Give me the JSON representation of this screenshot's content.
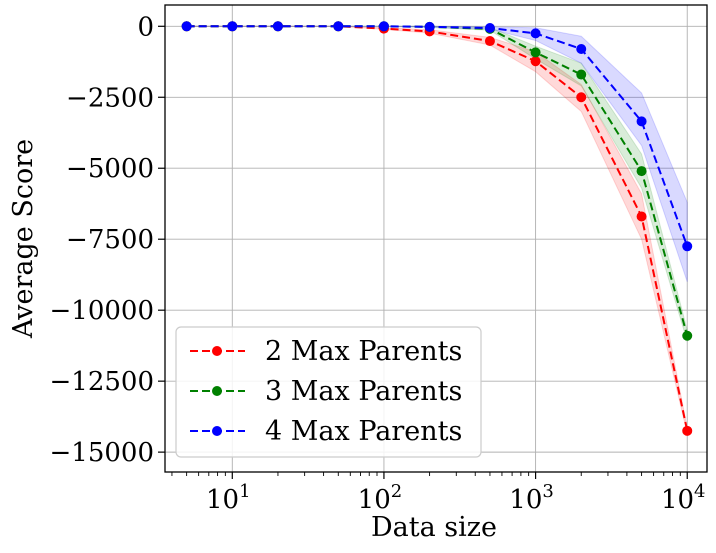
{
  "chart_data": {
    "type": "line",
    "title": "",
    "xlabel": "Data size",
    "ylabel": "Average Score",
    "xscale": "log",
    "xlim": [
      3.6,
      13500
    ],
    "ylim": [
      -15700,
      750
    ],
    "grid": true,
    "legend_position": "lower-left",
    "x_ticks": [
      {
        "value": 10,
        "mantissa": "10",
        "exp": "1"
      },
      {
        "value": 100,
        "mantissa": "10",
        "exp": "2"
      },
      {
        "value": 1000,
        "mantissa": "10",
        "exp": "3"
      },
      {
        "value": 10000,
        "mantissa": "10",
        "exp": "4"
      }
    ],
    "y_ticks": [
      {
        "value": 0,
        "label": "0"
      },
      {
        "value": -2500,
        "label": "−2500"
      },
      {
        "value": -5000,
        "label": "−5000"
      },
      {
        "value": -7500,
        "label": "−7500"
      },
      {
        "value": -10000,
        "label": "−10000"
      },
      {
        "value": -12500,
        "label": "−12500"
      },
      {
        "value": -15000,
        "label": "−15000"
      }
    ],
    "x": [
      5,
      10,
      20,
      50,
      100,
      200,
      500,
      1000,
      2000,
      5000,
      10000
    ],
    "series": [
      {
        "name": "2 Max Parents",
        "color": "#ff0000",
        "values": [
          0,
          0,
          0,
          0,
          -80,
          -180,
          -520,
          -1230,
          -2500,
          -6700,
          -14250
        ],
        "lower": [
          0,
          0,
          0,
          0,
          -110,
          -240,
          -660,
          -1600,
          -3000,
          -7500,
          -14350
        ],
        "upper": [
          0,
          0,
          0,
          0,
          -50,
          -120,
          -390,
          -900,
          -2050,
          -5900,
          -14150
        ]
      },
      {
        "name": "3 Max Parents",
        "color": "#008000",
        "values": [
          0,
          0,
          0,
          0,
          0,
          -20,
          -90,
          -920,
          -1700,
          -5100,
          -10900
        ],
        "lower": [
          0,
          0,
          0,
          0,
          0,
          -40,
          -140,
          -1150,
          -2100,
          -5700,
          -11100
        ],
        "upper": [
          0,
          0,
          0,
          0,
          0,
          0,
          -40,
          -700,
          -1300,
          -4500,
          -10700
        ]
      },
      {
        "name": "4 Max Parents",
        "color": "#0000ff",
        "values": [
          0,
          0,
          0,
          0,
          0,
          -20,
          -60,
          -250,
          -800,
          -3350,
          -7750
        ],
        "lower": [
          0,
          0,
          0,
          0,
          0,
          -40,
          -100,
          -500,
          -1300,
          -4200,
          -9000
        ],
        "upper": [
          0,
          0,
          0,
          0,
          0,
          0,
          -20,
          -50,
          -350,
          -2350,
          -6200
        ]
      }
    ]
  }
}
